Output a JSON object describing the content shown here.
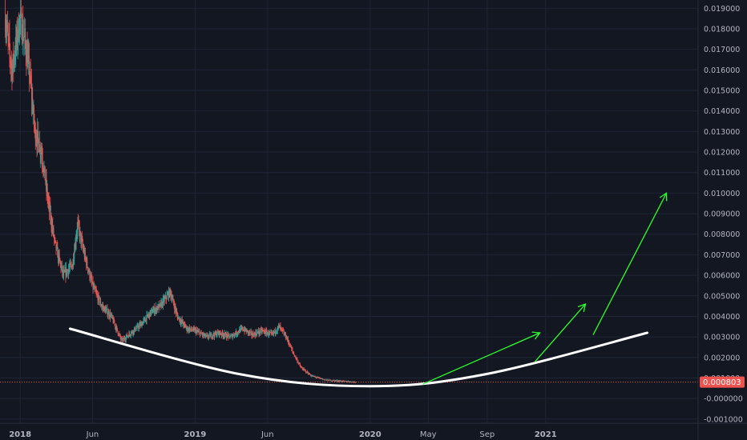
{
  "chart_data": {
    "type": "candlestick",
    "title": "",
    "xlabel": "",
    "ylabel": "",
    "ylim": [
      -0.0012,
      0.0194
    ],
    "x_range": [
      "2017-11-20",
      "2021-11-15"
    ],
    "grid": true,
    "colors": {
      "background": "#131722",
      "grid": "#1f2536",
      "axis_text": "#b2b5be",
      "up": "#26a69a",
      "down": "#ef5350",
      "price_line": "#ef5350",
      "arc": "#ffffff",
      "arrows": "#2cff2c"
    },
    "y_ticks": [
      "0.019000",
      "0.018000",
      "0.017000",
      "0.016000",
      "0.015000",
      "0.014000",
      "0.013000",
      "0.012000",
      "0.011000",
      "0.010000",
      "0.009000",
      "0.008000",
      "0.007000",
      "0.006000",
      "0.005000",
      "0.004000",
      "0.003000",
      "0.002000",
      "0.001000",
      "-0.000000",
      "-0.001000"
    ],
    "x_ticks": [
      {
        "label": "2018",
        "date": "2018-01-01"
      },
      {
        "label": "Jun",
        "date": "2018-06-01"
      },
      {
        "label": "2019",
        "date": "2019-01-01"
      },
      {
        "label": "Jun",
        "date": "2019-06-01"
      },
      {
        "label": "2020",
        "date": "2020-01-01"
      },
      {
        "label": "May",
        "date": "2020-05-01"
      },
      {
        "label": "Sep",
        "date": "2020-09-01"
      },
      {
        "label": "2021",
        "date": "2021-01-01"
      }
    ],
    "last_price": {
      "value": 0.000803,
      "label": "0.000803"
    },
    "price_series": {
      "name": "",
      "points": [
        {
          "date": "2017-12-01",
          "value": 0.0185
        },
        {
          "date": "2017-12-15",
          "value": 0.016
        },
        {
          "date": "2018-01-01",
          "value": 0.0185
        },
        {
          "date": "2018-01-10",
          "value": 0.0175
        },
        {
          "date": "2018-01-20",
          "value": 0.016
        },
        {
          "date": "2018-02-01",
          "value": 0.013
        },
        {
          "date": "2018-02-15",
          "value": 0.012
        },
        {
          "date": "2018-03-01",
          "value": 0.0095
        },
        {
          "date": "2018-03-15",
          "value": 0.0075
        },
        {
          "date": "2018-04-01",
          "value": 0.006
        },
        {
          "date": "2018-04-20",
          "value": 0.0065
        },
        {
          "date": "2018-05-01",
          "value": 0.0085
        },
        {
          "date": "2018-05-15",
          "value": 0.007
        },
        {
          "date": "2018-06-01",
          "value": 0.0055
        },
        {
          "date": "2018-06-20",
          "value": 0.0045
        },
        {
          "date": "2018-07-10",
          "value": 0.004
        },
        {
          "date": "2018-08-01",
          "value": 0.0028
        },
        {
          "date": "2018-08-20",
          "value": 0.0032
        },
        {
          "date": "2018-09-10",
          "value": 0.0036
        },
        {
          "date": "2018-10-01",
          "value": 0.0042
        },
        {
          "date": "2018-10-20",
          "value": 0.0045
        },
        {
          "date": "2018-11-10",
          "value": 0.0052
        },
        {
          "date": "2018-11-25",
          "value": 0.004
        },
        {
          "date": "2018-12-15",
          "value": 0.0034
        },
        {
          "date": "2019-01-01",
          "value": 0.0033
        },
        {
          "date": "2019-01-25",
          "value": 0.003
        },
        {
          "date": "2019-02-20",
          "value": 0.0032
        },
        {
          "date": "2019-03-15",
          "value": 0.003
        },
        {
          "date": "2019-04-10",
          "value": 0.0034
        },
        {
          "date": "2019-05-01",
          "value": 0.0031
        },
        {
          "date": "2019-05-20",
          "value": 0.0033
        },
        {
          "date": "2019-06-10",
          "value": 0.0031
        },
        {
          "date": "2019-06-25",
          "value": 0.0035
        },
        {
          "date": "2019-07-10",
          "value": 0.003
        },
        {
          "date": "2019-07-25",
          "value": 0.0022
        },
        {
          "date": "2019-08-10",
          "value": 0.0015
        },
        {
          "date": "2019-09-01",
          "value": 0.0011
        },
        {
          "date": "2019-10-01",
          "value": 0.0009
        },
        {
          "date": "2019-11-01",
          "value": 0.00085
        },
        {
          "date": "2019-12-01",
          "value": 0.000803
        }
      ]
    },
    "support_arc": {
      "type": "curve",
      "points": [
        {
          "date": "2018-04-15",
          "value": 0.0034
        },
        {
          "date": "2019-04-01",
          "value": 0.0012
        },
        {
          "date": "2020-01-01",
          "value": 0.0006
        },
        {
          "date": "2020-09-01",
          "value": 0.0012
        },
        {
          "date": "2021-08-01",
          "value": 0.0032
        }
      ]
    },
    "arrows": [
      {
        "from": {
          "date": "2020-04-20",
          "value": 0.0007
        },
        "to": {
          "date": "2020-12-20",
          "value": 0.0032
        }
      },
      {
        "from": {
          "date": "2020-12-10",
          "value": 0.0018
        },
        "to": {
          "date": "2021-03-25",
          "value": 0.0046
        }
      },
      {
        "from": {
          "date": "2021-04-10",
          "value": 0.0031
        },
        "to": {
          "date": "2021-09-10",
          "value": 0.01
        }
      }
    ]
  }
}
